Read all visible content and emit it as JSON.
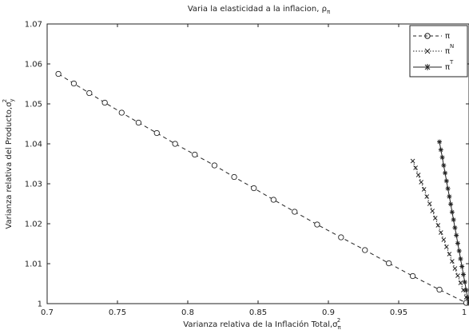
{
  "chart_data": {
    "type": "line",
    "title": "Varia la elasticidad a la inflacion, ρ",
    "title_subscript": "π",
    "xlabel": "Varianza relativa de la Inflación Total,σ",
    "xlabel_subscript": "π",
    "xlabel_superscript": "2",
    "ylabel": "Varianza relativa del Producto,σ",
    "ylabel_subscript": "y",
    "ylabel_superscript": "2",
    "xlim": [
      0.7,
      1.0
    ],
    "ylim": [
      1.0,
      1.07
    ],
    "xticks": [
      "0.7",
      "0.75",
      "0.8",
      "0.85",
      "0.9",
      "0.95",
      "1"
    ],
    "yticks": [
      "1",
      "1.01",
      "1.02",
      "1.03",
      "1.04",
      "1.05",
      "1.06",
      "1.07"
    ],
    "grid": false,
    "legend_position": "top-right",
    "series": [
      {
        "name": "π",
        "style": "dashed",
        "marker": "circle",
        "x": [
          0.708,
          0.719,
          0.73,
          0.741,
          0.753,
          0.765,
          0.778,
          0.791,
          0.805,
          0.819,
          0.833,
          0.847,
          0.861,
          0.876,
          0.892,
          0.909,
          0.926,
          0.943,
          0.96,
          0.979,
          0.998
        ],
        "y": [
          1.0575,
          1.0551,
          1.0527,
          1.0503,
          1.0478,
          1.0453,
          1.0427,
          1.04,
          1.0373,
          1.0346,
          1.0317,
          1.0289,
          1.026,
          1.023,
          1.0198,
          1.0166,
          1.0134,
          1.0101,
          1.0069,
          1.0035,
          1.0002
        ]
      },
      {
        "name": "π^N",
        "style": "dotted",
        "marker": "x",
        "x": [
          0.96,
          0.962,
          0.964,
          0.966,
          0.968,
          0.97,
          0.972,
          0.974,
          0.976,
          0.978,
          0.98,
          0.982,
          0.984,
          0.986,
          0.988,
          0.99,
          0.992,
          0.994,
          0.996,
          0.998,
          1.0
        ],
        "y": [
          1.0357,
          1.034,
          1.0322,
          1.0304,
          1.0286,
          1.0268,
          1.025,
          1.0232,
          1.0214,
          1.0196,
          1.0178,
          1.016,
          1.0142,
          1.0124,
          1.0106,
          1.0088,
          1.007,
          1.0052,
          1.0034,
          1.0016,
          1.0
        ]
      },
      {
        "name": "π^T",
        "style": "solid",
        "marker": "star",
        "x": [
          0.979,
          0.98,
          0.981,
          0.982,
          0.983,
          0.984,
          0.985,
          0.986,
          0.987,
          0.988,
          0.989,
          0.99,
          0.991,
          0.992,
          0.993,
          0.994,
          0.995,
          0.996,
          0.997,
          0.998,
          0.999,
          1.0
        ],
        "y": [
          1.0405,
          1.0385,
          1.0366,
          1.0346,
          1.0327,
          1.0307,
          1.0288,
          1.0268,
          1.0249,
          1.0229,
          1.021,
          1.019,
          1.0171,
          1.0151,
          1.0132,
          1.0112,
          1.0093,
          1.0073,
          1.0054,
          1.0034,
          1.0015,
          1.0
        ]
      }
    ],
    "legend": [
      {
        "label": "π",
        "sup": ""
      },
      {
        "label": "π",
        "sup": "N"
      },
      {
        "label": "π",
        "sup": "T"
      }
    ]
  }
}
